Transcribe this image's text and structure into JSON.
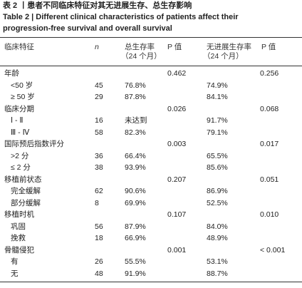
{
  "title": {
    "zh": "表 2 丨患者不同临床特征对其无进展生存、总生存影响",
    "en1": "Table 2 | Different clinical characteristics of patients affect their",
    "en2": "progression-free survival and overall survival"
  },
  "header": {
    "label": "临床特征",
    "n": "n",
    "os": "总生存率",
    "os_sub": "（24 个月）",
    "p_os": "P 值",
    "pfs": "无进展生存率",
    "pfs_sub": "（24 个月）",
    "p_pfs": "P 值"
  },
  "rows": [
    {
      "label": "年龄",
      "p_os": "0.462",
      "p_pfs": "0.256"
    },
    {
      "label": "<50 岁",
      "n": "45",
      "os": "76.8%",
      "pfs": "74.9%"
    },
    {
      "label": "≥ 50 岁",
      "n": "29",
      "os": "87.8%",
      "pfs": "84.1%"
    },
    {
      "label": "临床分期",
      "p_os": "0.026",
      "p_pfs": "0.068"
    },
    {
      "label": "Ⅰ - Ⅱ",
      "n": "16",
      "os": "未达到",
      "pfs": "91.7%"
    },
    {
      "label": "Ⅲ - Ⅳ",
      "n": "58",
      "os": "82.3%",
      "pfs": "79.1%"
    },
    {
      "label": "国际预后指数评分",
      "p_os": "0.003",
      "p_pfs": "0.017"
    },
    {
      "label": ">2 分",
      "n": "36",
      "os": "66.4%",
      "pfs": "65.5%"
    },
    {
      "label": "≤ 2 分",
      "n": "38",
      "os": "93.9%",
      "pfs": "85.6%"
    },
    {
      "label": "移植前状态",
      "p_os": "0.207",
      "p_pfs": "0.051"
    },
    {
      "label": "完全缓解",
      "n": "62",
      "os": "90.6%",
      "pfs": "86.9%"
    },
    {
      "label": "部分缓解",
      "n": "8",
      "os": "69.9%",
      "pfs": "52.5%"
    },
    {
      "label": "移植时机",
      "p_os": "0.107",
      "p_pfs": "0.010"
    },
    {
      "label": "巩固",
      "n": "56",
      "os": "87.9%",
      "pfs": "84.0%"
    },
    {
      "label": "挽救",
      "n": "18",
      "os": "66.9%",
      "pfs": "48.9%"
    },
    {
      "label": "骨髓侵犯",
      "p_os": "0.001",
      "p_pfs": "< 0.001"
    },
    {
      "label": "有",
      "n": "26",
      "os": "55.5%",
      "pfs": "53.1%"
    },
    {
      "label": "无",
      "n": "48",
      "os": "91.9%",
      "pfs": "88.7%"
    }
  ]
}
